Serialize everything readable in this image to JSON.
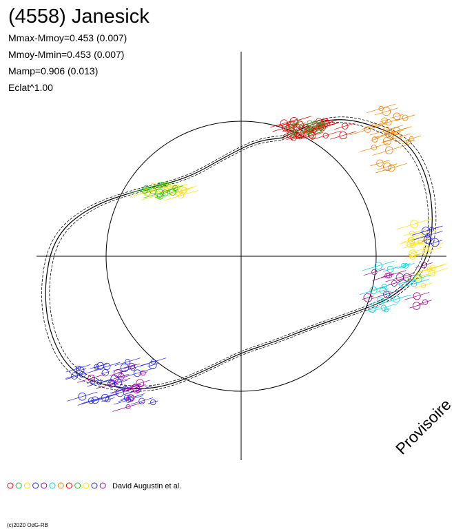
{
  "header": {
    "title": "(4558) Janesick",
    "stats": [
      "Mmax-Mmoy=0.453 (0.007)",
      "Mmoy-Mmin=0.453 (0.007)",
      "Mamp=0.906 (0.013)",
      "Eclat^1.00"
    ]
  },
  "watermark": "Provisoire",
  "legend": {
    "label": "David Augustin et al."
  },
  "footer": "(c)2020 OdG-RB"
}
